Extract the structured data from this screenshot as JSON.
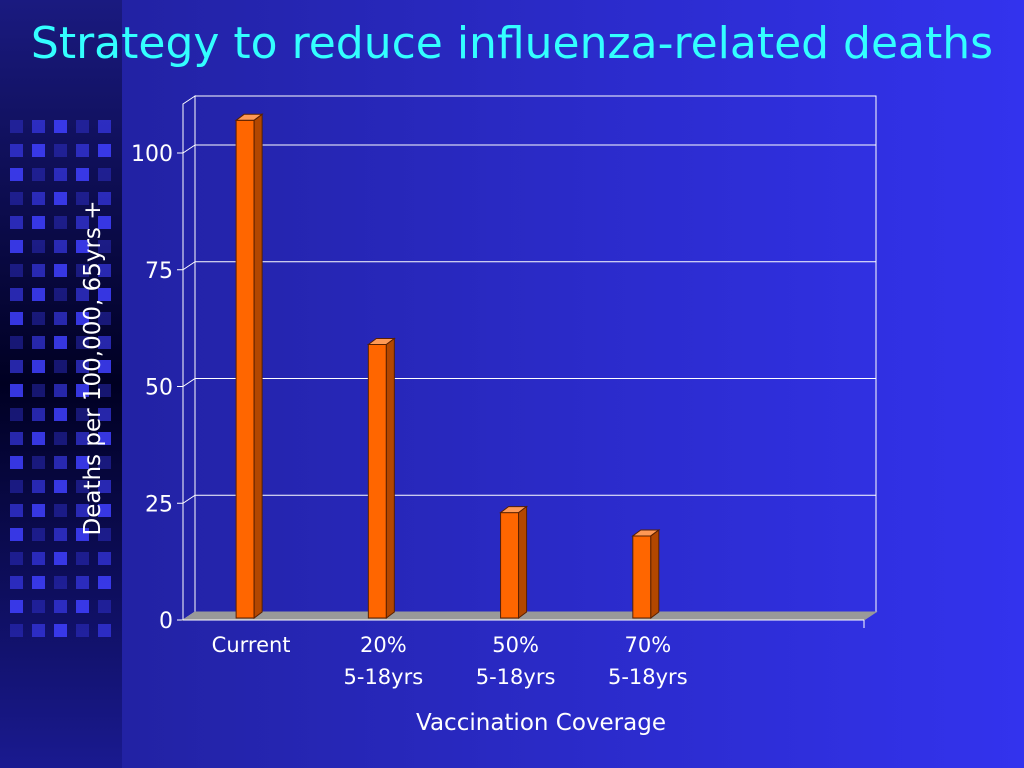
{
  "slide": {
    "title": "Strategy to reduce influenza-related deaths"
  },
  "colors": {
    "background": "#3333ee",
    "title": "#33ffff",
    "bar_front": "#ff6600",
    "bar_top": "#ff9955",
    "bar_side": "#b34700",
    "gridline": "#ffffff",
    "floor": "#999999"
  },
  "chart_data": {
    "type": "bar",
    "title": "Strategy to reduce influenza-related deaths",
    "xlabel": "Vaccination Coverage",
    "ylabel": "Deaths per 100,000,  65yrs +",
    "categories": [
      [
        "Current"
      ],
      [
        "20%",
        "5-18yrs"
      ],
      [
        "50%",
        "5-18yrs"
      ],
      [
        "70%",
        "5-18yrs"
      ]
    ],
    "values": [
      107,
      59,
      23,
      18
    ],
    "ylim": [
      0,
      100
    ],
    "yticks": [
      0,
      25,
      50,
      75,
      100
    ],
    "grid": true,
    "legend": "none"
  }
}
